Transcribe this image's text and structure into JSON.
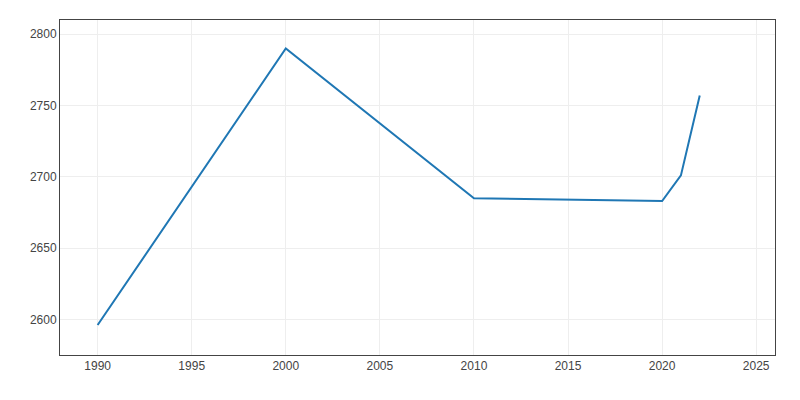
{
  "chart_data": {
    "type": "line",
    "x": [
      1990,
      2000,
      2010,
      2020,
      2021,
      2022
    ],
    "values": [
      2596,
      2790,
      2685,
      2683,
      2701,
      2757
    ],
    "xlim": [
      1988,
      2026
    ],
    "ylim": [
      2575,
      2810
    ],
    "xticks": [
      1990,
      1995,
      2000,
      2005,
      2010,
      2015,
      2020,
      2025
    ],
    "yticks": [
      2600,
      2650,
      2700,
      2750,
      2800
    ],
    "grid": true
  }
}
